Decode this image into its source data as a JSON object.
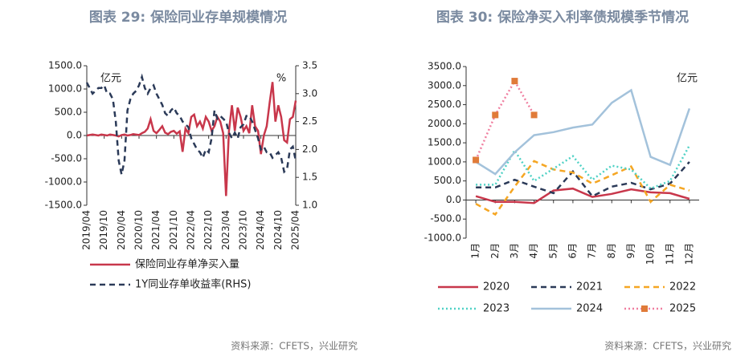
{
  "chart_data": [
    {
      "type": "line",
      "title": "图表 29: 保险同业存单规模情况",
      "source": "资料来源：CFETS，兴业研究",
      "annotations": [
        "亿元",
        "%"
      ],
      "categories": [
        "2019/04",
        null,
        null,
        null,
        null,
        null,
        "2019/10",
        null,
        null,
        null,
        null,
        null,
        "2020/04",
        null,
        null,
        null,
        null,
        null,
        "2020/10",
        null,
        null,
        null,
        null,
        null,
        "2021/04",
        null,
        null,
        null,
        null,
        null,
        "2021/10",
        null,
        null,
        null,
        null,
        null,
        "2022/04",
        null,
        null,
        null,
        null,
        null,
        "2022/10",
        null,
        null,
        null,
        null,
        null,
        "2023/04",
        null,
        null,
        null,
        null,
        null,
        "2023/10",
        null,
        null,
        null,
        null,
        null,
        "2024/04",
        null,
        null,
        null,
        null,
        null,
        "2024/10",
        null,
        null,
        null,
        null,
        null,
        "2025/04"
      ],
      "ylim": [
        -1500,
        1500
      ],
      "yticks": [
        {
          "value": -1500,
          "label": "-1500.0"
        },
        {
          "value": -1000,
          "label": "-1000.0"
        },
        {
          "value": -500,
          "label": "-500.0"
        },
        {
          "value": 0,
          "label": "0.0"
        },
        {
          "value": 500,
          "label": "500.0"
        },
        {
          "value": 1000,
          "label": "1000.0"
        },
        {
          "value": 1500,
          "label": "1500.0"
        }
      ],
      "y2lim": [
        1.0,
        3.5
      ],
      "y2ticks": [
        {
          "value": 1,
          "label": "1.0"
        },
        1.5,
        {
          "value": 2,
          "label": "2.0"
        },
        2.5,
        {
          "value": 3,
          "label": "3.0"
        },
        3.5
      ],
      "legend": "bottom",
      "series": [
        {
          "name": "保险同业存单净买入量",
          "color": "#c8374b",
          "style": "solid",
          "values": [
            0,
            10,
            20,
            10,
            0,
            20,
            10,
            0,
            20,
            10,
            0,
            -20,
            10,
            20,
            0,
            10,
            30,
            20,
            10,
            50,
            80,
            150,
            350,
            100,
            50,
            120,
            200,
            60,
            30,
            80,
            100,
            40,
            90,
            -350,
            150,
            50,
            400,
            450,
            200,
            300,
            150,
            400,
            300,
            100,
            200,
            400,
            300,
            50,
            -1300,
            100,
            650,
            100,
            600,
            400,
            100,
            200,
            50,
            650,
            200,
            100,
            -400,
            0,
            200,
            700,
            1150,
            300,
            650,
            400,
            -100,
            -150,
            350,
            400,
            750
          ]
        },
        {
          "name": "1Y同业存单收益率(RHS)",
          "color": "#2b3a58",
          "style": "dashed",
          "axis": "y2",
          "values": [
            3.2,
            3.1,
            3.0,
            3.05,
            3.1,
            3.1,
            3.15,
            3.0,
            3.0,
            2.9,
            2.5,
            1.8,
            1.55,
            1.8,
            2.7,
            2.9,
            3.0,
            3.05,
            3.15,
            3.3,
            3.1,
            3.0,
            3.1,
            3.15,
            3.0,
            2.9,
            2.8,
            2.65,
            2.6,
            2.7,
            2.75,
            2.65,
            2.6,
            2.5,
            2.45,
            2.4,
            2.2,
            2.1,
            2.0,
            1.95,
            1.85,
            2.0,
            1.95,
            2.2,
            2.7,
            2.55,
            2.6,
            2.55,
            2.5,
            2.3,
            2.2,
            2.3,
            2.2,
            2.4,
            2.45,
            2.6,
            2.6,
            2.5,
            2.35,
            2.2,
            2.0,
            2.05,
            1.95,
            1.95,
            1.85,
            1.9,
            1.95,
            1.85,
            1.6,
            1.65,
            2.0,
            2.05,
            1.8
          ]
        }
      ]
    },
    {
      "type": "line",
      "title": "图表 30: 保险净买入利率债规模季节情况",
      "source": "资料来源：CFETS，兴业研究",
      "annotations": [
        "亿元"
      ],
      "categories": [
        "1月",
        "2月",
        "3月",
        "4月",
        "5月",
        "6月",
        "7月",
        "8月",
        "9月",
        "10月",
        "11月",
        "12月"
      ],
      "ylim": [
        -1000,
        3500
      ],
      "yticks": [
        {
          "value": -1000,
          "label": "-1000.0"
        },
        {
          "value": -500,
          "label": "-500.0"
        },
        {
          "value": 0,
          "label": "0.0"
        },
        {
          "value": 500,
          "label": "500.0"
        },
        {
          "value": 1000,
          "label": "1000.0"
        },
        {
          "value": 1500,
          "label": "1500.0"
        },
        {
          "value": 2000,
          "label": "2000.0"
        },
        {
          "value": 2500,
          "label": "2500.0"
        },
        {
          "value": 3000,
          "label": "3000.0"
        },
        {
          "value": 3500,
          "label": "3500.0"
        }
      ],
      "legend": "bottom",
      "series": [
        {
          "name": "2020",
          "color": "#c8374b",
          "style": "solid",
          "values": [
            100,
            -50,
            -50,
            -80,
            250,
            300,
            80,
            160,
            280,
            200,
            180,
            30
          ]
        },
        {
          "name": "2021",
          "color": "#2b3a58",
          "style": "dashed",
          "values": [
            330,
            330,
            530,
            350,
            180,
            750,
            100,
            350,
            450,
            280,
            430,
            1000
          ]
        },
        {
          "name": "2022",
          "color": "#f5a623",
          "style": "dashed",
          "values": [
            -100,
            -380,
            350,
            1020,
            800,
            720,
            430,
            650,
            880,
            -50,
            400,
            250
          ]
        },
        {
          "name": "2023",
          "color": "#4fd1c5",
          "style": "dotted",
          "values": [
            400,
            400,
            1300,
            500,
            820,
            1150,
            530,
            900,
            800,
            300,
            500,
            1430
          ]
        },
        {
          "name": "2024",
          "color": "#a3c2db",
          "style": "solid",
          "values": [
            1000,
            680,
            1250,
            1700,
            1780,
            1900,
            1980,
            2550,
            2880,
            1130,
            920,
            2400
          ]
        },
        {
          "name": "2025",
          "color": "#f07fa0",
          "style": "dotted",
          "marker": "square",
          "marker_color": "#e07b39",
          "values": [
            1050,
            2230,
            3120,
            2230,
            null,
            null,
            null,
            null,
            null,
            null,
            null,
            null
          ]
        }
      ]
    }
  ]
}
